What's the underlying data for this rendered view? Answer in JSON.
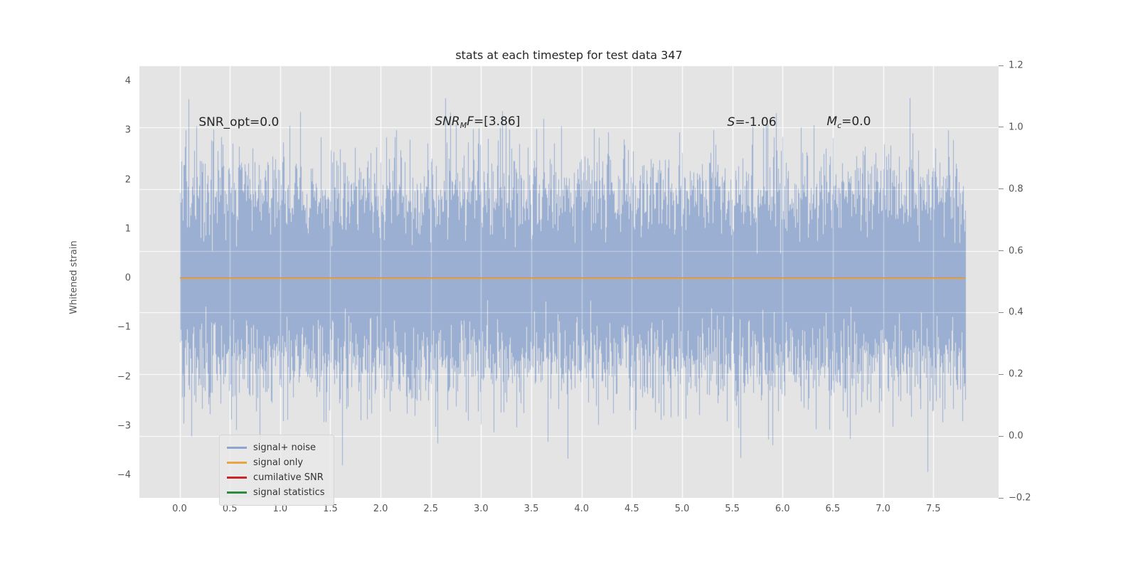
{
  "style": {
    "fig_bg": "#ffffff",
    "plot_bg": "#e4e4e4",
    "grid_color": "#ffffff",
    "text_color": "#262626",
    "tick_color": "#555555"
  },
  "chart_data": {
    "type": "line",
    "title": "stats at each timestep for test data 347",
    "xlabel": "",
    "ylabel_left": "Whitened strain",
    "axes": {
      "xlim": [
        -0.4,
        8.15
      ],
      "ylim_left": [
        -4.46,
        4.32
      ],
      "ylim_right": [
        -0.2,
        1.2
      ],
      "xticks": [
        {
          "v": 0.0,
          "label": "0.0"
        },
        {
          "v": 0.5,
          "label": "0.5"
        },
        {
          "v": 1.0,
          "label": "1.0"
        },
        {
          "v": 1.5,
          "label": "1.5"
        },
        {
          "v": 2.0,
          "label": "2.0"
        },
        {
          "v": 2.5,
          "label": "2.5"
        },
        {
          "v": 3.0,
          "label": "3.0"
        },
        {
          "v": 3.5,
          "label": "3.5"
        },
        {
          "v": 4.0,
          "label": "4.0"
        },
        {
          "v": 4.5,
          "label": "4.5"
        },
        {
          "v": 5.0,
          "label": "5.0"
        },
        {
          "v": 5.5,
          "label": "5.5"
        },
        {
          "v": 6.0,
          "label": "6.0"
        },
        {
          "v": 6.5,
          "label": "6.5"
        },
        {
          "v": 7.0,
          "label": "7.0"
        },
        {
          "v": 7.5,
          "label": "7.5"
        }
      ],
      "yticks_left": [
        {
          "v": 4,
          "label": "4"
        },
        {
          "v": 3,
          "label": "3"
        },
        {
          "v": 2,
          "label": "2"
        },
        {
          "v": 1,
          "label": "1"
        },
        {
          "v": 0,
          "label": "0"
        },
        {
          "v": -1,
          "label": "−1"
        },
        {
          "v": -2,
          "label": "−2"
        },
        {
          "v": -3,
          "label": "−3"
        },
        {
          "v": -4,
          "label": "−4"
        }
      ],
      "yticks_right": [
        {
          "v": 1.2,
          "label": "1.2"
        },
        {
          "v": 1.0,
          "label": "1.0"
        },
        {
          "v": 0.8,
          "label": "0.8"
        },
        {
          "v": 0.6,
          "label": "0.6"
        },
        {
          "v": 0.4,
          "label": "0.4"
        },
        {
          "v": 0.2,
          "label": "0.2"
        },
        {
          "v": 0.0,
          "label": "0.0"
        },
        {
          "v": -0.2,
          "label": "−0.2"
        }
      ],
      "grid": true
    },
    "annotations": [
      {
        "x": 0.19,
        "y": 3.17,
        "parts": [
          {
            "text": "SNR_opt=0.0"
          }
        ]
      },
      {
        "x": 2.54,
        "y": 3.17,
        "parts": [
          {
            "text": "SNR",
            "italic": true
          },
          {
            "text": "M",
            "italic": true,
            "sub": true
          },
          {
            "text": "F",
            "italic": true
          },
          {
            "text": "=[3.86]"
          }
        ]
      },
      {
        "x": 5.45,
        "y": 3.17,
        "parts": [
          {
            "text": "S",
            "italic": true
          },
          {
            "text": "=-1.06"
          }
        ]
      },
      {
        "x": 6.44,
        "y": 3.17,
        "parts": [
          {
            "text": "M",
            "italic": true
          },
          {
            "text": "c",
            "italic": true,
            "sub": true
          },
          {
            "text": "=0.0"
          }
        ]
      }
    ],
    "stats_values": {
      "SNR_opt": "0.0",
      "SNR_MF": "[3.86]",
      "S": "-1.06",
      "M_c": "0.0"
    },
    "series": [
      {
        "name": "signal+ noise",
        "kind": "noise",
        "axis": "left",
        "mean": 0.0,
        "std": 1.0,
        "x_start": 0.0,
        "x_end": 7.82,
        "color": "#8ea6cf",
        "alpha": 0.85,
        "seed": 347,
        "samples_per_column": 16
      },
      {
        "name": "signal statistics",
        "kind": "constant",
        "axis": "left",
        "value": 0.0,
        "color": "#2e8b3d",
        "width": 1.5
      },
      {
        "name": "cumilative SNR",
        "kind": "constant",
        "axis": "left",
        "value": 0.0,
        "color": "#cc2529",
        "width": 1.5
      },
      {
        "name": "signal only",
        "kind": "constant",
        "axis": "left",
        "value": 0.0,
        "color": "#e9a53f",
        "width": 2
      }
    ],
    "legend": {
      "position": "lower left",
      "entries": [
        {
          "label": "signal+ noise",
          "color": "#8ea6cf"
        },
        {
          "label": "signal only",
          "color": "#e9a53f"
        },
        {
          "label": "cumilative SNR",
          "color": "#cc2529"
        },
        {
          "label": "signal statistics",
          "color": "#2e8b3d"
        }
      ]
    }
  }
}
